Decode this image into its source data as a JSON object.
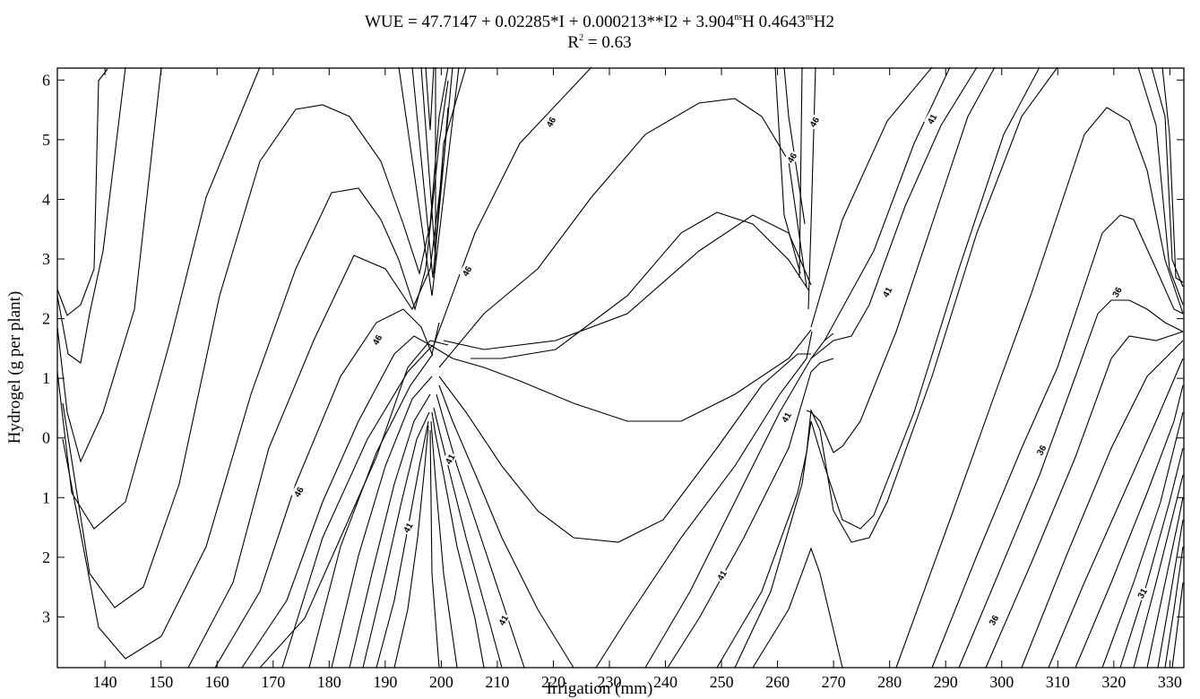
{
  "chart_data": {
    "type": "contour",
    "title_line1": "WUE = 47.7147 + 0.02285*I + 0.000213**I2 + 3.904",
    "title_sup1": "ns",
    "title_mid": "H    0.4643",
    "title_sup2": "ns",
    "title_end": "H2",
    "title_line2": "R",
    "title_line2_sup": "2",
    "title_line2_end": " = 0.63",
    "xlabel": "Irrigation (mm)",
    "ylabel": "Hydrogel (g per plant)",
    "xlim": [
      131.5,
      332.5
    ],
    "ylim": [
      -3.85,
      6.2
    ],
    "x_ticks": [
      140,
      150,
      160,
      170,
      180,
      190,
      200,
      210,
      220,
      230,
      240,
      250,
      260,
      270,
      280,
      290,
      300,
      310,
      320,
      330
    ],
    "y_ticks": [
      {
        "value": 6,
        "label": "6"
      },
      {
        "value": 5,
        "label": "5"
      },
      {
        "value": 4,
        "label": "4"
      },
      {
        "value": 3,
        "label": "3"
      },
      {
        "value": 2,
        "label": "2"
      },
      {
        "value": 1,
        "label": "1"
      },
      {
        "value": 0,
        "label": "0"
      },
      {
        "value": -1,
        "label": "1"
      },
      {
        "value": -2,
        "label": "2"
      },
      {
        "value": -3,
        "label": "3"
      }
    ],
    "contour_labels": [
      {
        "text": "46",
        "x": 219.5,
        "y": 5.3
      },
      {
        "text": "46",
        "x": 188.5,
        "y": 1.65
      },
      {
        "text": "46",
        "x": 204.5,
        "y": 2.8
      },
      {
        "text": "46",
        "x": 174.5,
        "y": -0.9
      },
      {
        "text": "46",
        "x": 262.5,
        "y": 4.7
      },
      {
        "text": "46",
        "x": 266.5,
        "y": 5.3
      },
      {
        "text": "41",
        "x": 287.5,
        "y": 5.35
      },
      {
        "text": "41",
        "x": 279.5,
        "y": 2.45
      },
      {
        "text": "41",
        "x": 261.5,
        "y": 0.35
      },
      {
        "text": "41",
        "x": 201.5,
        "y": -0.35
      },
      {
        "text": "41",
        "x": 194.0,
        "y": -1.5
      },
      {
        "text": "41",
        "x": 211.0,
        "y": -3.05
      },
      {
        "text": "41",
        "x": 250.0,
        "y": -2.3
      },
      {
        "text": "36",
        "x": 320.5,
        "y": 2.45
      },
      {
        "text": "36",
        "x": 307.0,
        "y": -0.2
      },
      {
        "text": "36",
        "x": 298.5,
        "y": -3.05
      },
      {
        "text": "31",
        "x": 325.0,
        "y": -2.6
      }
    ],
    "grid": false
  }
}
